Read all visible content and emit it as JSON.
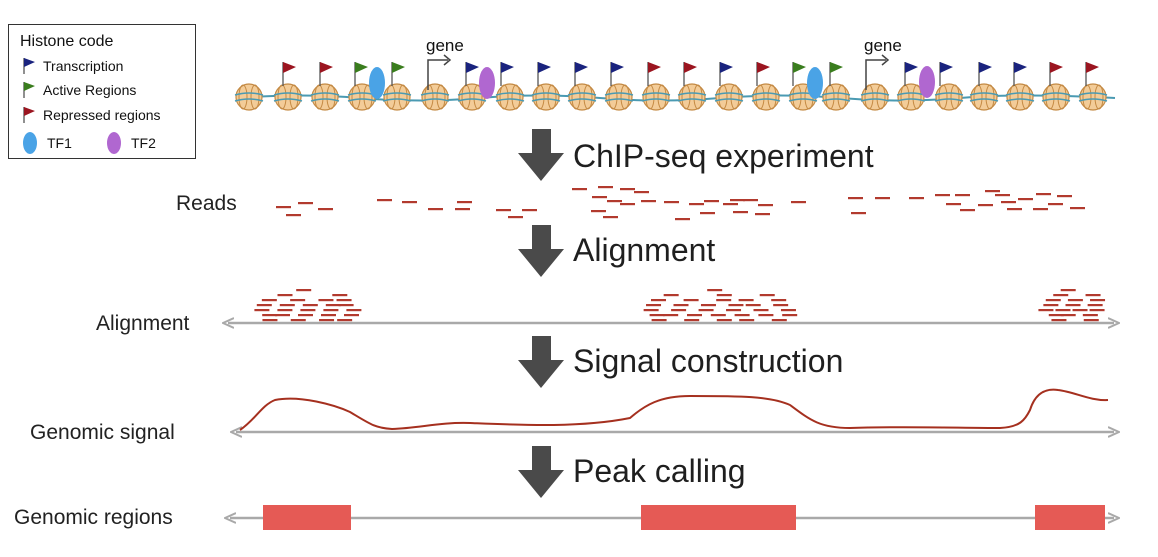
{
  "legend": {
    "title": "Histone code",
    "items": [
      {
        "label": "Transcription",
        "color": "#1a237e",
        "icon": "flag-icon"
      },
      {
        "label": "Active Regions",
        "color": "#3a7d1e",
        "icon": "flag-icon"
      },
      {
        "label": "Repressed regions",
        "color": "#9b1520",
        "icon": "flag-icon"
      }
    ],
    "tfs": [
      {
        "label": "TF1",
        "color": "#4aa3e6"
      },
      {
        "label": "TF2",
        "color": "#b067d0"
      }
    ]
  },
  "gene_labels": [
    "gene",
    "gene"
  ],
  "steps": [
    {
      "label": "ChIP-seq experiment"
    },
    {
      "label": "Alignment"
    },
    {
      "label": "Signal construction"
    },
    {
      "label": "Peak calling"
    }
  ],
  "rows": {
    "reads": "Reads",
    "alignment": "Alignment",
    "genomic_signal": "Genomic signal",
    "genomic_regions": "Genomic regions"
  },
  "colors": {
    "read": "#b23a2e",
    "signal": "#a5301f",
    "region": "#e55a55",
    "axis": "#a9a9a9",
    "arrow": "#4a4a4a",
    "nucleosome": "#f3cc98",
    "dna": "#4a9ab2"
  }
}
